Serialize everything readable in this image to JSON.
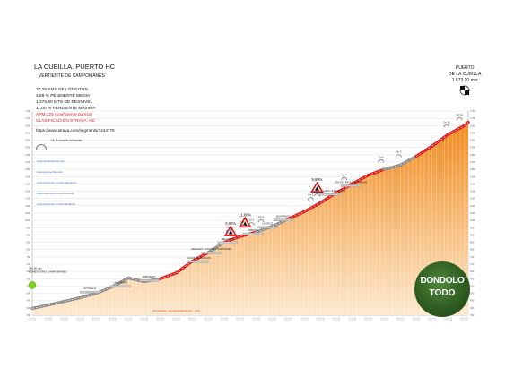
{
  "header": {
    "title": "LA CUBILLA. PUERTO HC",
    "subtitle": "VERTIENTE DE CAMPOMANES",
    "stats": [
      {
        "text": "27,25 KMS DE LONGITUD",
        "highlight": false
      },
      {
        "text": "4,69 % PENDIENTE MEDIA",
        "highlight": false
      },
      {
        "text": "1.276,60 MTS DE DESNIVEL",
        "highlight": false
      },
      {
        "text": "11,00 % PENDIENTE MÁXIMA",
        "highlight": false
      },
      {
        "text": "APM 225 (coeficiente dureza)",
        "highlight": true
      },
      {
        "text": "CLASIFICACIÓN STRAVA: HC",
        "highlight": true
      }
    ],
    "url": "https://www.strava.com/segments/1244779",
    "legend": "Ctr 1 curva de herradura"
  },
  "links": [
    "www.dondolotodo.com",
    "www.ganivecrito.com",
    "www.facebook.com/dondolotodo",
    "www.facebook.com/altimetrias",
    "www.facebook.com/fondistaisla"
  ],
  "summit": {
    "line1": "PUERTO",
    "line2": "DE LA CUBILLA",
    "line3": "1.673,20 mts"
  },
  "start": {
    "line1": "396,60 mts",
    "line2": "CEMENTERIO CAMPOMANES"
  },
  "credits": "Dondolotodo · www.dondolotodo.com · 2014",
  "logo": {
    "line1": "DONDOLO",
    "line2": "TODO"
  },
  "colors": {
    "road_red": "#e0191b",
    "road_grey": "#8a8a8a",
    "fill_top": "#f08a1c",
    "fill_bottom": "#fde9cf",
    "grid": "#d4d4d4"
  },
  "chart_data": {
    "type": "area",
    "title": "LA CUBILLA. PUERTO HC",
    "xlabel": "",
    "ylabel": "",
    "xlim": [
      0,
      27.25
    ],
    "ylim": [
      350,
      1750
    ],
    "y_ticks": [
      350,
      400,
      450,
      500,
      550,
      600,
      650,
      700,
      750,
      800,
      850,
      900,
      950,
      1000,
      1050,
      1100,
      1150,
      1200,
      1250,
      1300,
      1350,
      1400,
      1450,
      1500,
      1550,
      1600,
      1650,
      1700,
      1750
    ],
    "x": [
      0,
      1,
      2,
      3,
      4,
      5,
      6,
      7,
      8,
      9,
      10,
      11,
      12,
      13,
      14,
      15,
      16,
      17,
      18,
      19,
      20,
      21,
      22,
      23,
      24,
      25,
      26,
      27,
      27.25
    ],
    "y": [
      396.6,
      420,
      445,
      470,
      500,
      545,
      605,
      580,
      600,
      640,
      720,
      780,
      850,
      890,
      920,
      960,
      1010,
      1060,
      1120,
      1190,
      1250,
      1310,
      1350,
      1380,
      1440,
      1510,
      1590,
      1650,
      1673.2
    ],
    "gradient_colors": [
      "grey",
      "grey",
      "grey",
      "grey",
      "grey",
      "grey",
      "grey",
      "grey",
      "red",
      "red",
      "red",
      "grey",
      "red",
      "red",
      "grey",
      "grey",
      "red",
      "red",
      "red",
      "red",
      "red",
      "red",
      "grey",
      "grey",
      "red",
      "red",
      "red",
      "red"
    ],
    "annotations": [
      {
        "x": 3.6,
        "y": 490,
        "label": "SOTIELLO"
      },
      {
        "x": 5.5,
        "y": 530,
        "label": "LAS AGRAS"
      },
      {
        "x": 7.3,
        "y": 570,
        "label": "ESPINEDO"
      },
      {
        "x": 10.4,
        "y": 700,
        "label": "CRUCE RECONCOS"
      },
      {
        "x": 11.2,
        "y": 760,
        "label": "PERALES / GASTERU FONTANIES"
      },
      {
        "x": 12.2,
        "y": 830,
        "label": "BELLISOS"
      },
      {
        "x": 13.8,
        "y": 890,
        "label": "ARBADA"
      },
      {
        "x": 14.7,
        "y": 935,
        "label": "LA CRUZ"
      },
      {
        "x": 15.7,
        "y": 985,
        "label": "BUSPRADO"
      },
      {
        "x": 18.6,
        "y": 1160,
        "label": "REBOLLADO / EL CALLAO"
      },
      {
        "x": 19.9,
        "y": 1220,
        "label": "CRUCE / FAYAS DE PARAIN"
      }
    ],
    "max_gradients": [
      {
        "x": 12.4,
        "y": 810,
        "label": "8,00%"
      },
      {
        "x": 13.3,
        "y": 870,
        "label": "11,00%"
      },
      {
        "x": 17.8,
        "y": 1110,
        "label": "9,80%"
      }
    ],
    "hairpins": [
      {
        "x": 12.3,
        "label": "Ctr 1"
      },
      {
        "x": 13.2,
        "label": "Ctr 2"
      },
      {
        "x": 13.7,
        "label": "Ctr 3"
      },
      {
        "x": 14.3,
        "label": "Ctr 4"
      },
      {
        "x": 17.4,
        "label": "Ctr 5"
      },
      {
        "x": 17.8,
        "label": "Ctr 6"
      },
      {
        "x": 19.5,
        "label": "Ctr 7"
      },
      {
        "x": 21.8,
        "label": "Ctr 8"
      },
      {
        "x": 22.9,
        "label": "Ctr 9"
      },
      {
        "x": 25.9,
        "label": "Ctr 10"
      },
      {
        "x": 26.7,
        "label": "Ctr 11"
      }
    ]
  }
}
